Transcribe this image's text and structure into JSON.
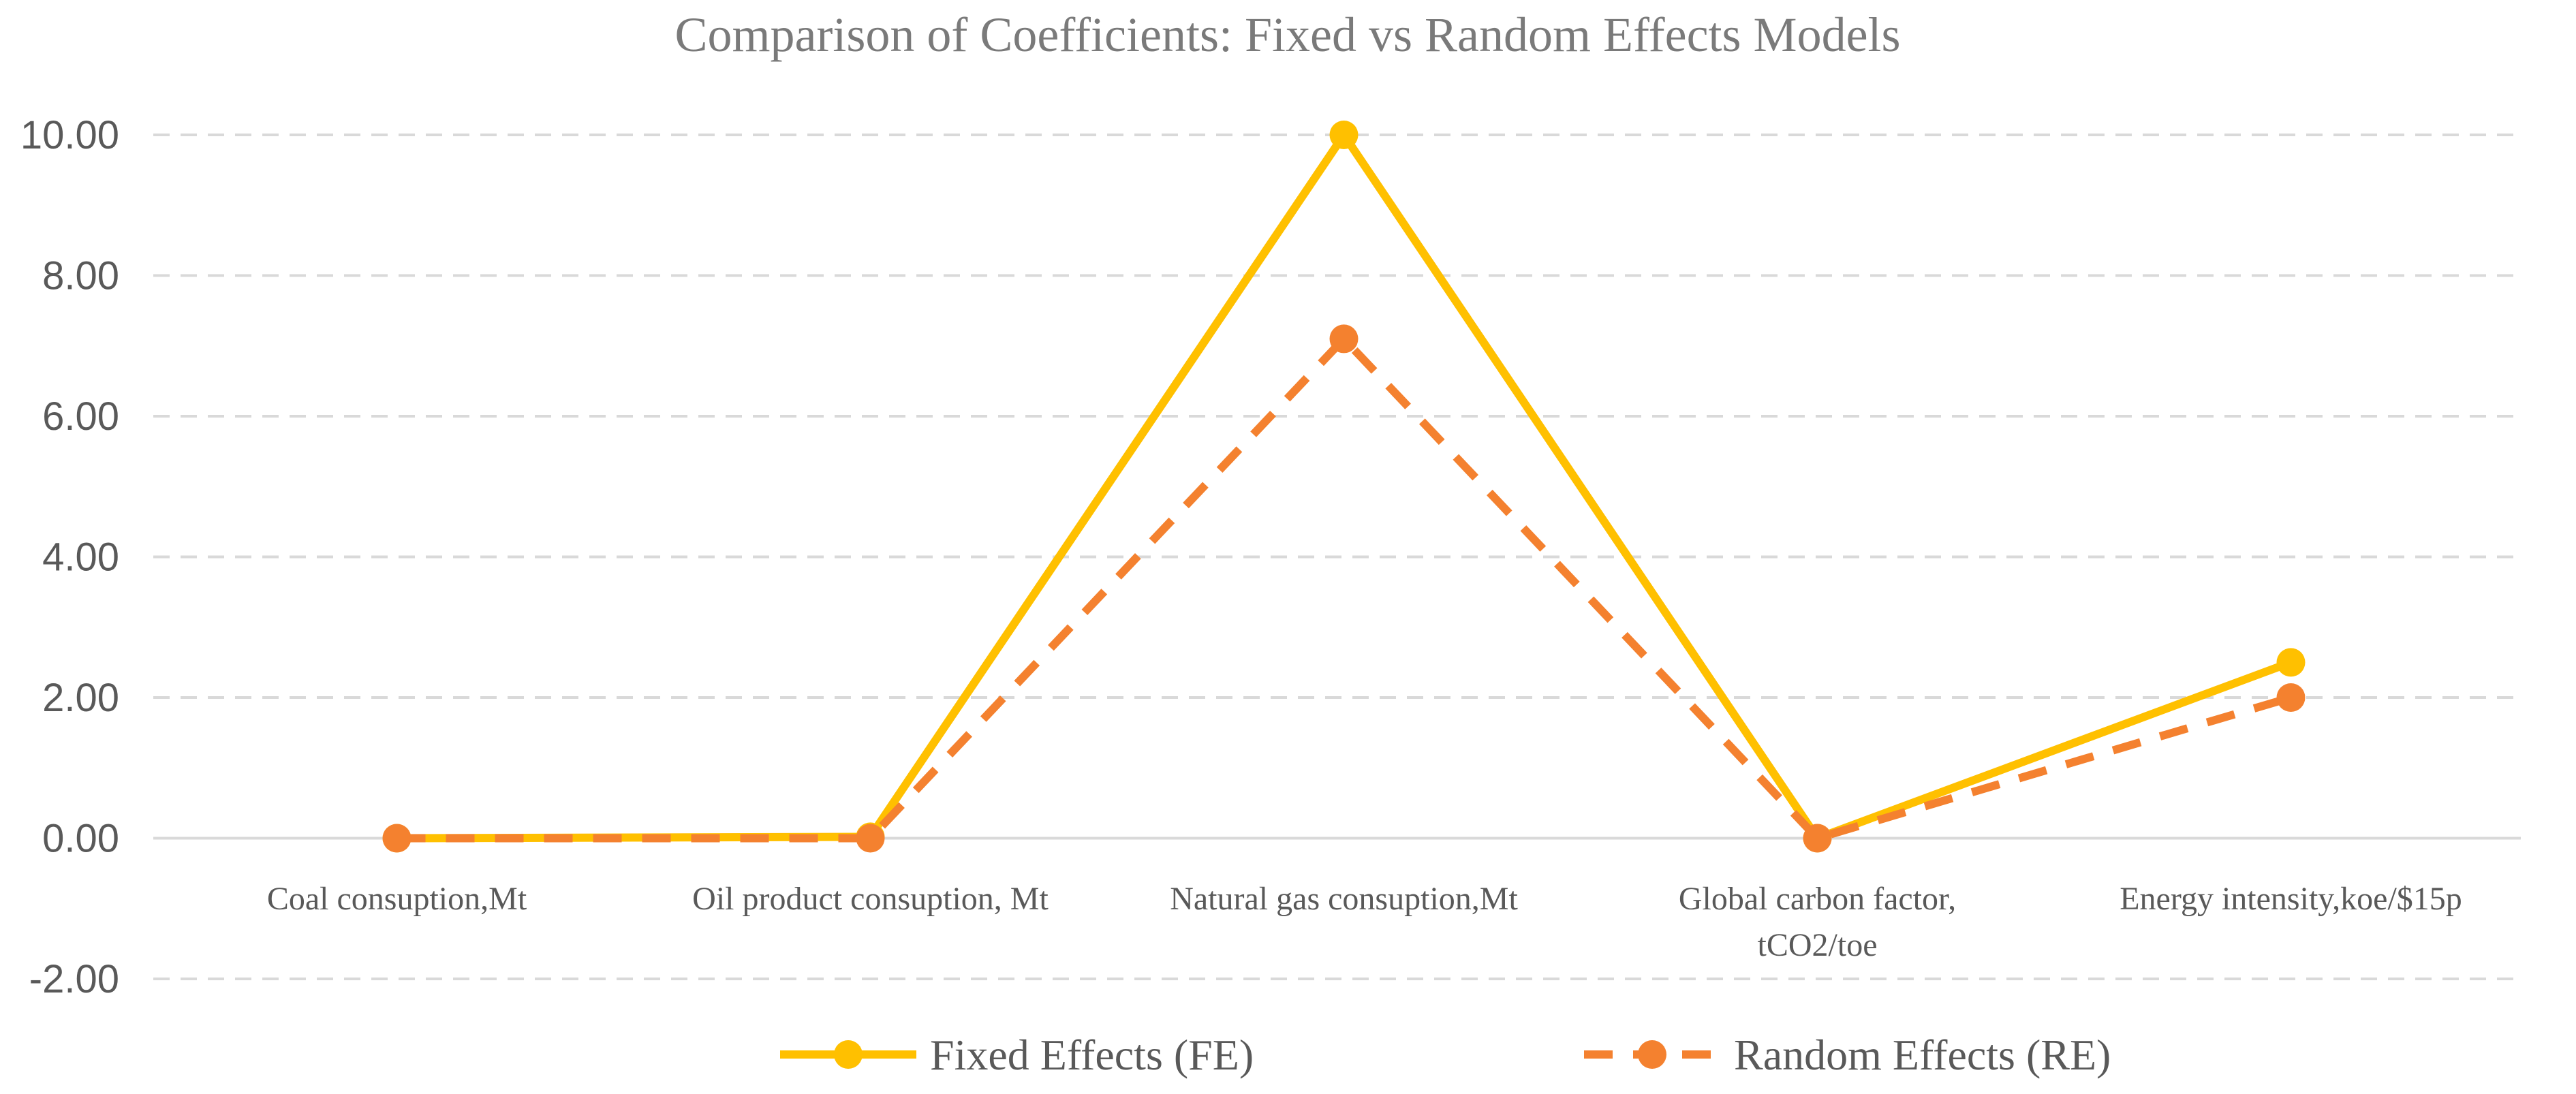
{
  "chart_data": {
    "type": "line",
    "title": "Comparison of Coefficients: Fixed vs Random Effects Models",
    "categories": [
      [
        "Coal consuption,Mt"
      ],
      [
        "Oil  product consuption, Mt"
      ],
      [
        "Natural gas consuption,Mt"
      ],
      [
        "Global carbon factor,",
        "tCO2/toe"
      ],
      [
        "Energy intensity,koe/$15p"
      ]
    ],
    "series": [
      {
        "name": "Fixed Effects (FE)",
        "values": [
          0.0,
          0.02,
          10.0,
          0.0,
          2.5
        ],
        "color": "#FFC000",
        "style": "solid"
      },
      {
        "name": "Random Effects (RE)",
        "values": [
          0.0,
          0.0,
          7.1,
          0.0,
          2.0
        ],
        "color": "#F4812F",
        "style": "dashed"
      }
    ],
    "yticks": [
      "10.00",
      "8.00",
      "6.00",
      "4.00",
      "2.00",
      "0.00",
      "-2.00"
    ],
    "ylim": [
      -2,
      10
    ],
    "xlabel": "",
    "ylabel": "",
    "grid": true,
    "legend_position": "bottom"
  },
  "colors": {
    "grid": "#D9D9D9",
    "axis": "#D9D9D9",
    "fe": "#FFC000",
    "re": "#F4812F"
  }
}
